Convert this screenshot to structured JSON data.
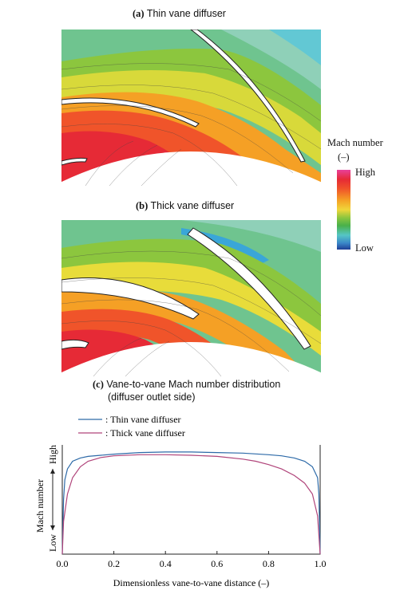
{
  "panels": {
    "a": {
      "letter": "(a)",
      "title": "Thin vane diffuser"
    },
    "b": {
      "letter": "(b)",
      "title": "Thick vane diffuser"
    },
    "c": {
      "letter": "(c)",
      "title_line1": "Vane-to-vane Mach number distribution",
      "title_line2": "(diffuser outlet side)"
    }
  },
  "legend": {
    "title_line1": "Mach number",
    "title_line2": "(–)",
    "high": "High",
    "low": "Low",
    "colors": [
      "#e8409a",
      "#e62a36",
      "#f0542a",
      "#f5a025",
      "#f0d63a",
      "#8cc63e",
      "#49b04a",
      "#55c6c5",
      "#3a86c8",
      "#1f3f95"
    ]
  },
  "chart_data": {
    "type": "line",
    "xlabel": "Dimensionless vane-to-vane distance  (–)",
    "ylabel": "Mach number",
    "y_high_label": "High",
    "y_low_label": "Low",
    "xlim": [
      0,
      1
    ],
    "ylim": [
      0,
      1
    ],
    "x_ticks": [
      "0.0",
      "0.2",
      "0.4",
      "0.6",
      "0.8",
      "1.0"
    ],
    "series": [
      {
        "name": ": Thin vane diffuser",
        "color": "#2d6aa8",
        "x": [
          0.0,
          0.005,
          0.01,
          0.02,
          0.04,
          0.07,
          0.1,
          0.15,
          0.2,
          0.3,
          0.4,
          0.5,
          0.6,
          0.7,
          0.8,
          0.85,
          0.9,
          0.94,
          0.97,
          0.99,
          0.995,
          1.0
        ],
        "y": [
          0.0,
          0.5,
          0.68,
          0.78,
          0.85,
          0.88,
          0.895,
          0.905,
          0.915,
          0.93,
          0.935,
          0.935,
          0.93,
          0.925,
          0.91,
          0.9,
          0.88,
          0.85,
          0.8,
          0.7,
          0.55,
          0.0
        ]
      },
      {
        "name": ": Thick vane diffuser",
        "color": "#b0447a",
        "x": [
          0.0,
          0.005,
          0.02,
          0.04,
          0.07,
          0.1,
          0.15,
          0.2,
          0.3,
          0.4,
          0.5,
          0.6,
          0.7,
          0.75,
          0.8,
          0.85,
          0.9,
          0.94,
          0.97,
          0.99,
          1.0
        ],
        "y": [
          0.0,
          0.3,
          0.55,
          0.7,
          0.8,
          0.85,
          0.885,
          0.9,
          0.91,
          0.91,
          0.905,
          0.895,
          0.87,
          0.85,
          0.82,
          0.78,
          0.72,
          0.65,
          0.55,
          0.35,
          0.0
        ]
      }
    ]
  }
}
